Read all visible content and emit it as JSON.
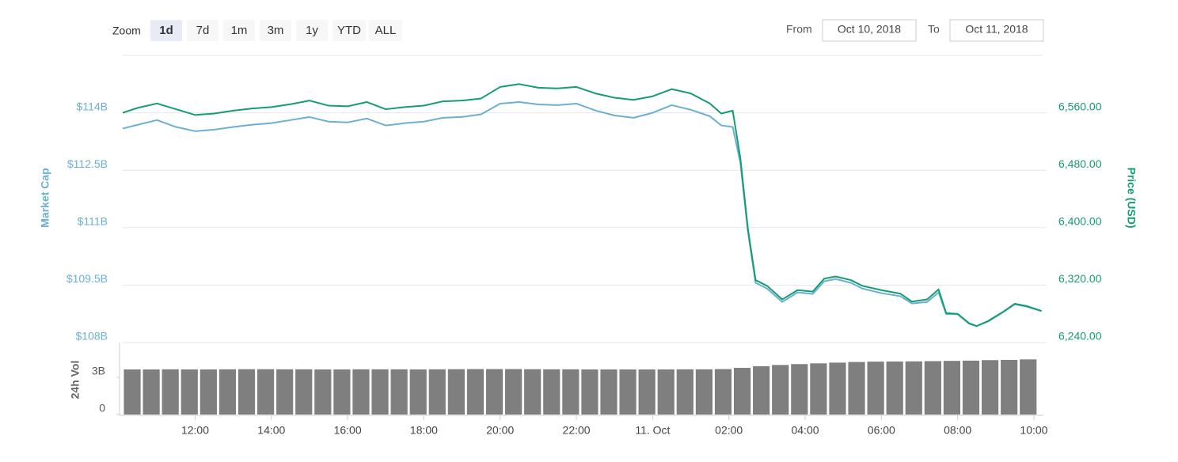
{
  "toolbar": {
    "zoom_label": "Zoom",
    "zoom_buttons": [
      "1d",
      "7d",
      "1m",
      "3m",
      "1y",
      "YTD",
      "ALL"
    ],
    "active_index": 0,
    "from_label": "From",
    "from_date": "Oct 10, 2018",
    "to_label": "To",
    "to_date": "Oct 11, 2018"
  },
  "chart_data": [
    {
      "type": "line",
      "x": [
        10.1,
        10.5,
        11,
        11.5,
        12,
        12.5,
        13,
        13.5,
        14,
        14.5,
        15,
        15.5,
        16,
        16.5,
        17,
        17.5,
        18,
        18.5,
        19,
        19.5,
        20,
        20.5,
        21,
        21.5,
        22,
        22.5,
        23,
        23.5,
        24,
        24.5,
        25,
        25.5,
        25.8,
        26.1,
        26.3,
        26.5,
        26.7,
        27,
        27.4,
        27.8,
        28.2,
        28.5,
        28.8,
        29.2,
        29.5,
        30,
        30.5,
        30.8,
        31.2,
        31.5,
        31.7,
        32,
        32.3,
        32.5,
        32.8,
        33.2,
        33.5,
        33.8,
        34.2
      ],
      "xlim": [
        10.1,
        34.25
      ],
      "y_label": "Market Cap",
      "ylim": [
        108,
        115.5
      ],
      "yticks": [
        {
          "value": 108,
          "label": "$108B"
        },
        {
          "value": 109.5,
          "label": "$109.5B"
        },
        {
          "value": 111,
          "label": "$111B"
        },
        {
          "value": 112.5,
          "label": "$112.5B"
        },
        {
          "value": 114,
          "label": "$114B"
        }
      ],
      "y2_label": "Price (USD)",
      "y2lim": [
        6240,
        6640
      ],
      "y2ticks": [
        {
          "value": 6240,
          "label": "6,240.00"
        },
        {
          "value": 6320,
          "label": "6,320.00"
        },
        {
          "value": 6400,
          "label": "6,400.00"
        },
        {
          "value": 6480,
          "label": "6,480.00"
        },
        {
          "value": 6560,
          "label": "6,560.00"
        }
      ],
      "grid": true,
      "series": [
        {
          "color": "#6ab0d4",
          "axis": "y",
          "values": [
            113.59,
            113.69,
            113.81,
            113.63,
            113.52,
            113.56,
            113.63,
            113.69,
            113.73,
            113.81,
            113.89,
            113.77,
            113.75,
            113.85,
            113.67,
            113.73,
            113.77,
            113.87,
            113.89,
            113.96,
            114.24,
            114.28,
            114.22,
            114.2,
            114.24,
            114.06,
            113.93,
            113.87,
            114.0,
            114.2,
            114.08,
            113.91,
            113.67,
            113.63,
            112.7,
            110.89,
            109.56,
            109.41,
            109.06,
            109.31,
            109.27,
            109.6,
            109.66,
            109.56,
            109.41,
            109.29,
            109.21,
            109.02,
            109.06,
            109.31,
            108.74,
            108.74,
            108.49,
            108.43,
            108.55,
            108.8,
            109.0,
            108.94,
            108.82
          ]
        },
        {
          "color": "#149c72",
          "axis": "y2",
          "values": [
            6560,
            6567,
            6573,
            6565,
            6557,
            6559,
            6563,
            6566,
            6568,
            6572,
            6577,
            6570,
            6569,
            6575,
            6565,
            6568,
            6570,
            6576,
            6577,
            6580,
            6596,
            6600,
            6595,
            6594,
            6596,
            6587,
            6581,
            6578,
            6583,
            6593,
            6587,
            6573,
            6559,
            6563,
            6497,
            6398,
            6327,
            6319,
            6300,
            6313,
            6311,
            6329,
            6332,
            6327,
            6319,
            6313,
            6308,
            6297,
            6300,
            6314,
            6281,
            6280,
            6267,
            6263,
            6270,
            6283,
            6294,
            6291,
            6284
          ]
        }
      ]
    },
    {
      "type": "bar",
      "x": [
        10.35,
        10.85,
        11.35,
        11.85,
        12.35,
        12.85,
        13.35,
        13.85,
        14.35,
        14.85,
        15.35,
        15.85,
        16.35,
        16.85,
        17.35,
        17.85,
        18.35,
        18.85,
        19.35,
        19.85,
        20.35,
        20.85,
        21.35,
        21.85,
        22.35,
        22.85,
        23.35,
        23.85,
        24.35,
        24.85,
        25.35,
        25.85,
        26.35,
        26.85,
        27.35,
        27.85,
        28.35,
        28.85,
        29.35,
        29.85,
        30.35,
        30.85,
        31.35,
        31.85,
        32.35,
        32.85,
        33.35,
        33.85
      ],
      "xlim": [
        10.1,
        34.25
      ],
      "xticks": [
        {
          "value": 12,
          "label": "12:00"
        },
        {
          "value": 14,
          "label": "14:00"
        },
        {
          "value": 16,
          "label": "16:00"
        },
        {
          "value": 18,
          "label": "18:00"
        },
        {
          "value": 20,
          "label": "20:00"
        },
        {
          "value": 22,
          "label": "22:00"
        },
        {
          "value": 24,
          "label": "11. Oct"
        },
        {
          "value": 26,
          "label": "02:00"
        },
        {
          "value": 28,
          "label": "04:00"
        },
        {
          "value": 30,
          "label": "06:00"
        },
        {
          "value": 32,
          "label": "08:00"
        },
        {
          "value": 34,
          "label": "10:00"
        }
      ],
      "y_label": "24h Vol",
      "ylim": [
        0,
        5.81
      ],
      "yticks": [
        0,
        {
          "value": 3,
          "label": "3B"
        }
      ],
      "color": "#7f7f7f",
      "values": [
        3.64,
        3.64,
        3.65,
        3.64,
        3.64,
        3.65,
        3.66,
        3.66,
        3.65,
        3.65,
        3.64,
        3.64,
        3.65,
        3.65,
        3.65,
        3.64,
        3.65,
        3.66,
        3.67,
        3.67,
        3.67,
        3.66,
        3.65,
        3.65,
        3.64,
        3.64,
        3.64,
        3.64,
        3.64,
        3.65,
        3.65,
        3.67,
        3.77,
        3.9,
        4.0,
        4.07,
        4.13,
        4.19,
        4.24,
        4.27,
        4.28,
        4.29,
        4.31,
        4.33,
        4.35,
        4.39,
        4.41,
        4.45
      ]
    }
  ]
}
